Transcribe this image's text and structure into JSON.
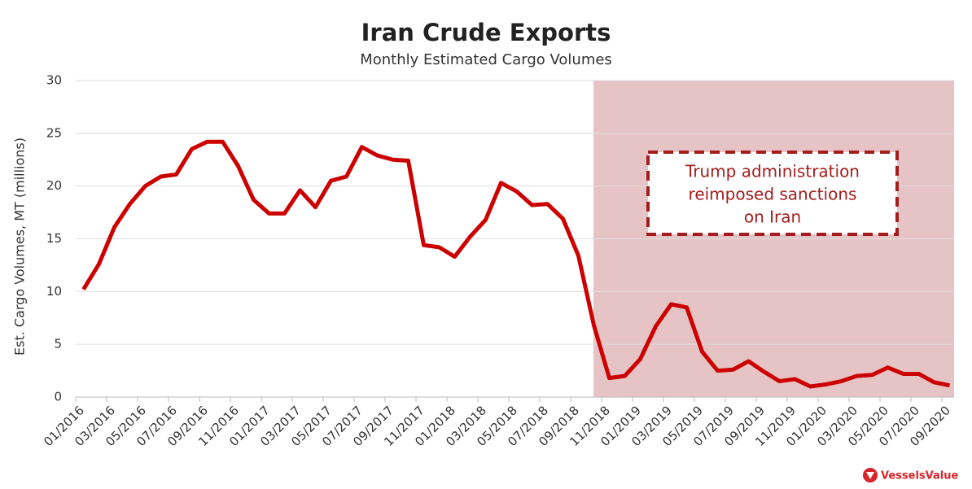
{
  "chart_data": {
    "type": "line",
    "title": "Iran Crude Exports",
    "subtitle": "Monthly Estimated Cargo Volumes",
    "y_label": "Est. Cargo Volumes, MT (millions)",
    "annotation": [
      "Trump administration",
      "reimposed sanctions",
      "on Iran"
    ],
    "brand": "VesselsValue",
    "categories": [
      "01/2016",
      null,
      "03/2016",
      null,
      "05/2016",
      null,
      "07/2016",
      null,
      "09/2016",
      null,
      "11/2016",
      null,
      "01/2017",
      null,
      "03/2017",
      null,
      "05/2017",
      null,
      "07/2017",
      null,
      "09/2017",
      null,
      "11/2017",
      null,
      "01/2018",
      null,
      "03/2018",
      null,
      "05/2018",
      null,
      "07/2018",
      null,
      "09/2018",
      null,
      "11/2018",
      null,
      "01/2019",
      null,
      "03/2019",
      null,
      "05/2019",
      null,
      "07/2019",
      null,
      "09/2019",
      null,
      "11/2019",
      null,
      "01/2020",
      null,
      "03/2020",
      null,
      "05/2020",
      null,
      "07/2020",
      null,
      "09/2020"
    ],
    "series": [
      {
        "name": "Iran Crude Exports",
        "color": "#cc0000",
        "values": [
          10.2,
          12.6,
          16.1,
          18.3,
          20.0,
          20.9,
          21.1,
          23.5,
          24.2,
          24.2,
          21.9,
          18.7,
          17.4,
          17.4,
          19.6,
          18.0,
          20.5,
          20.9,
          23.7,
          22.9,
          22.5,
          22.4,
          14.4,
          14.2,
          13.3,
          15.2,
          16.8,
          20.3,
          19.5,
          18.2,
          18.3,
          16.9,
          13.4,
          6.8,
          1.8,
          2.0,
          3.6,
          6.7,
          8.8,
          8.5,
          4.3,
          2.5,
          2.6,
          3.4,
          2.4,
          1.5,
          1.7,
          1.0,
          1.2,
          1.5,
          2.0,
          2.1,
          2.8,
          2.2,
          2.2,
          1.4,
          1.1
        ]
      }
    ],
    "ylim": [
      0,
      30
    ],
    "yticks": [
      0,
      5,
      10,
      15,
      20,
      25,
      30
    ],
    "grid": true
  }
}
